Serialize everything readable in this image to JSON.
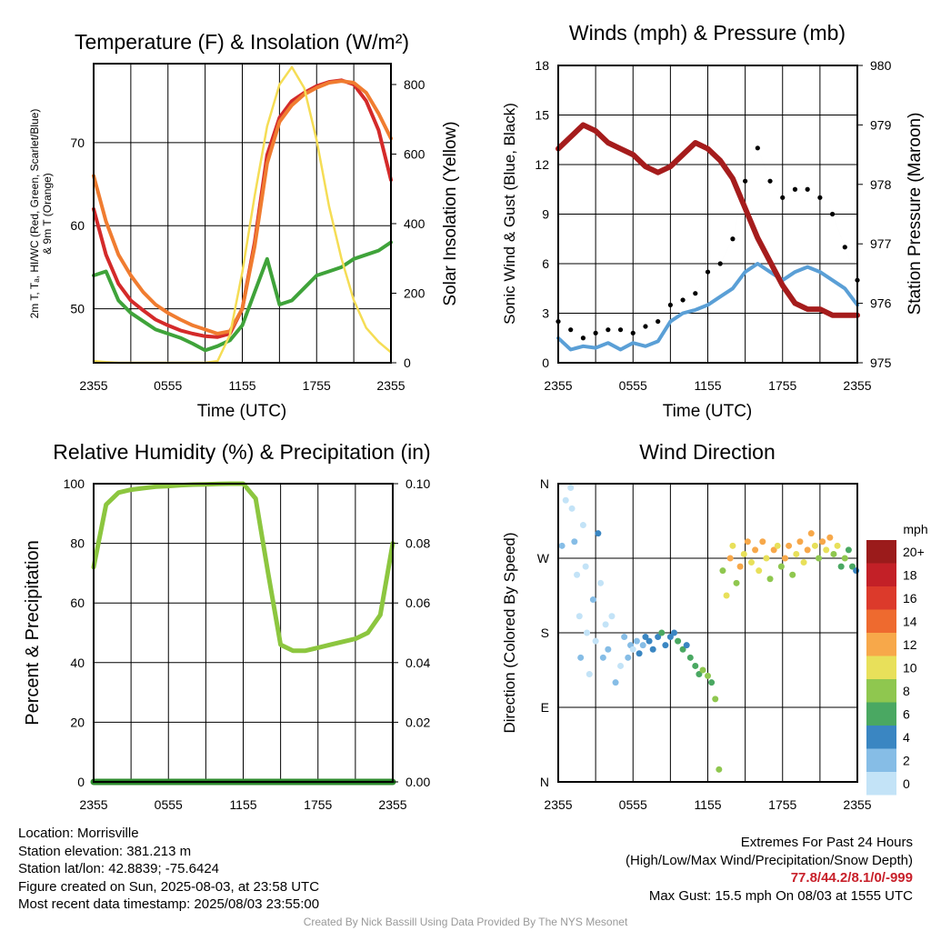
{
  "panels": {
    "temp": {
      "title": "Temperature (F) & Insolation (W/m²)",
      "xlabel": "Time (UTC)",
      "ylabel_lines": [
        "2m T, Tₐ, HI/WC (Red, Green, Scarlet/Blue)",
        "& 9m T (Orange)"
      ],
      "ylabel2": "Solar Insolation (Yellow)"
    },
    "wind": {
      "title": "Winds (mph) & Pressure (mb)",
      "xlabel": "Time (UTC)",
      "ylabel": "Sonic Wind & Gust (Blue, Black)",
      "ylabel2": "Station Pressure (Maroon)"
    },
    "rh": {
      "title": "Relative Humidity (%) & Precipitation (in)",
      "ylabel": "Percent & Precipitation"
    },
    "dir": {
      "title": "Wind Direction",
      "ylabel": "Direction (Colored By Speed)",
      "legend_title": "mph",
      "legend_labels": [
        "20+",
        "18",
        "16",
        "14",
        "12",
        "10",
        "8",
        "6",
        "4",
        "2",
        "0"
      ],
      "legend_colors": [
        "#9b1b1b",
        "#c32027",
        "#dc3a2b",
        "#ee6a2f",
        "#f7a84a",
        "#e8e05a",
        "#8fc74f",
        "#4aa862",
        "#3a86c2",
        "#86bde6",
        "#c3e3f7"
      ]
    }
  },
  "chart_data": [
    {
      "type": "line",
      "title": "Temperature (F) & Insolation (W/m²)",
      "xlabel": "Time (UTC)",
      "ylabel": "2m T, Td, HI/WC (Red, Green, Scarlet/Blue) & 9m T (Orange)",
      "y2label": "Solar Insolation (Yellow)",
      "xticks": [
        "2355",
        "0555",
        "1155",
        "1755",
        "2355"
      ],
      "x": [
        0,
        1,
        2,
        3,
        4,
        5,
        6,
        7,
        8,
        9,
        10,
        11,
        12,
        13,
        14,
        15,
        16,
        17,
        18,
        19,
        20,
        21,
        22,
        23,
        24
      ],
      "ylim": [
        43.5,
        79.5
      ],
      "y2lim": [
        0,
        860
      ],
      "yticks": [
        50,
        60,
        70
      ],
      "y2ticks": [
        0,
        200,
        400,
        600,
        800
      ],
      "grid": true,
      "series": [
        {
          "name": "2m T",
          "axis": "left",
          "color": "#d42a2a",
          "values": [
            62.0,
            56.5,
            53.0,
            51.0,
            49.8,
            48.7,
            48.0,
            47.4,
            47.0,
            46.7,
            46.6,
            47.0,
            50.0,
            58.0,
            68.5,
            73.0,
            75.0,
            76.0,
            76.8,
            77.3,
            77.5,
            77.0,
            75.0,
            71.5,
            65.5
          ]
        },
        {
          "name": "9m T",
          "axis": "left",
          "color": "#f07c30",
          "values": [
            66.0,
            60.5,
            56.5,
            54.0,
            52.0,
            50.5,
            49.5,
            48.7,
            48.0,
            47.5,
            47.0,
            47.3,
            50.0,
            57.5,
            67.5,
            72.5,
            74.5,
            75.8,
            76.6,
            77.2,
            77.4,
            77.2,
            76.0,
            73.5,
            70.5
          ]
        },
        {
          "name": "Td",
          "axis": "left",
          "color": "#3fa33a",
          "values": [
            54.0,
            54.5,
            51.0,
            49.5,
            48.5,
            47.5,
            47.0,
            46.5,
            45.8,
            45.0,
            45.5,
            46.2,
            48.0,
            52.0,
            56.0,
            50.5,
            51.0,
            52.5,
            54.0,
            54.5,
            55.0,
            56.0,
            56.5,
            57.0,
            58.0
          ]
        },
        {
          "name": "Solar Insolation",
          "axis": "right",
          "color": "#f5dd55",
          "values": [
            5,
            2,
            0,
            0,
            0,
            0,
            0,
            0,
            0,
            0,
            5,
            80,
            260,
            480,
            680,
            800,
            850,
            790,
            640,
            450,
            300,
            180,
            100,
            60,
            30
          ]
        }
      ]
    },
    {
      "type": "line",
      "title": "Winds (mph) & Pressure (mb)",
      "xlabel": "Time (UTC)",
      "ylabel": "Sonic Wind & Gust (Blue, Black)",
      "y2label": "Station Pressure (Maroon)",
      "xticks": [
        "2355",
        "0555",
        "1155",
        "1755",
        "2355"
      ],
      "x": [
        0,
        1,
        2,
        3,
        4,
        5,
        6,
        7,
        8,
        9,
        10,
        11,
        12,
        13,
        14,
        15,
        16,
        17,
        18,
        19,
        20,
        21,
        22,
        23,
        24
      ],
      "ylim": [
        0,
        18
      ],
      "yticks": [
        0,
        3,
        6,
        9,
        12,
        15,
        18
      ],
      "y2lim": [
        975,
        980
      ],
      "y2ticks": [
        975,
        976,
        977,
        978,
        979,
        980
      ],
      "grid": true,
      "series": [
        {
          "name": "Sonic Wind",
          "axis": "left",
          "color": "#5a9fd6",
          "values": [
            1.5,
            0.8,
            1.0,
            0.9,
            1.2,
            0.8,
            1.2,
            1.0,
            1.3,
            2.5,
            3.0,
            3.2,
            3.5,
            4.0,
            4.5,
            5.5,
            6.0,
            5.5,
            5.0,
            5.5,
            5.8,
            5.5,
            5.0,
            4.5,
            3.5
          ]
        },
        {
          "name": "Gust",
          "axis": "left",
          "color": "#000000",
          "values": [
            2.5,
            2.0,
            1.5,
            1.8,
            2.0,
            2.0,
            1.8,
            2.2,
            2.5,
            3.5,
            3.8,
            4.2,
            5.5,
            6.0,
            7.5,
            11.0,
            13.0,
            11.0,
            10.0,
            10.5,
            10.5,
            10.0,
            9.0,
            7.0,
            5.0
          ]
        },
        {
          "name": "Station Pressure",
          "axis": "right",
          "color": "#a51c1c",
          "values": [
            978.6,
            978.8,
            979.0,
            978.9,
            978.7,
            978.6,
            978.5,
            978.3,
            978.2,
            978.3,
            978.5,
            978.7,
            978.6,
            978.4,
            978.1,
            977.6,
            977.1,
            976.7,
            976.3,
            976.0,
            975.9,
            975.9,
            975.8,
            975.8,
            975.8
          ]
        }
      ],
      "max_gust": 15.5
    },
    {
      "type": "line",
      "title": "Relative Humidity (%) & Precipitation (in)",
      "ylabel": "Percent & Precipitation",
      "xticks": [
        "2355",
        "0555",
        "1155",
        "1755",
        "2355"
      ],
      "x": [
        0,
        1,
        2,
        3,
        4,
        5,
        6,
        7,
        8,
        9,
        10,
        11,
        12,
        13,
        14,
        15,
        16,
        17,
        18,
        19,
        20,
        21,
        22,
        23,
        24
      ],
      "ylim": [
        0,
        100
      ],
      "yticks": [
        0,
        20,
        40,
        60,
        80,
        100
      ],
      "y2lim": [
        0,
        0.1
      ],
      "y2ticks": [
        "0.00",
        "0.02",
        "0.04",
        "0.06",
        "0.08",
        "0.10"
      ],
      "grid": true,
      "series": [
        {
          "name": "Relative Humidity",
          "axis": "left",
          "color": "#8cc63f",
          "values": [
            72,
            93,
            97,
            98,
            98.5,
            99,
            99.2,
            99.5,
            99.7,
            99.8,
            99.9,
            100,
            100,
            95,
            70,
            46,
            44,
            44,
            45,
            46,
            47,
            48,
            50,
            56,
            80
          ]
        },
        {
          "name": "Precipitation",
          "axis": "right",
          "color": "#2e8b2e",
          "values": [
            0,
            0,
            0,
            0,
            0,
            0,
            0,
            0,
            0,
            0,
            0,
            0,
            0,
            0,
            0,
            0,
            0,
            0,
            0,
            0,
            0,
            0,
            0,
            0,
            0
          ]
        }
      ]
    },
    {
      "type": "scatter",
      "title": "Wind Direction",
      "ylabel": "Direction (Colored By Speed)",
      "xticks": [
        "2355",
        "0555",
        "1155",
        "1755",
        "2355"
      ],
      "yticks": [
        "N",
        "E",
        "S",
        "W",
        "N"
      ],
      "ylim": [
        0,
        360
      ],
      "grid": true,
      "points": [
        [
          0.3,
          285,
          1
        ],
        [
          0.6,
          340,
          0
        ],
        [
          1.0,
          355,
          0
        ],
        [
          1.1,
          330,
          0
        ],
        [
          1.3,
          290,
          1
        ],
        [
          1.5,
          250,
          0
        ],
        [
          1.7,
          200,
          0
        ],
        [
          1.8,
          150,
          1
        ],
        [
          2.0,
          310,
          0
        ],
        [
          2.2,
          260,
          0
        ],
        [
          2.3,
          180,
          0
        ],
        [
          2.5,
          130,
          0
        ],
        [
          2.8,
          220,
          1
        ],
        [
          3.0,
          170,
          0
        ],
        [
          3.2,
          300,
          2
        ],
        [
          3.4,
          240,
          0
        ],
        [
          3.6,
          150,
          1
        ],
        [
          3.8,
          190,
          0
        ],
        [
          4.0,
          160,
          1
        ],
        [
          4.3,
          200,
          0
        ],
        [
          4.6,
          120,
          1
        ],
        [
          5.0,
          140,
          0
        ],
        [
          5.3,
          175,
          1
        ],
        [
          5.6,
          150,
          1
        ],
        [
          5.8,
          165,
          1
        ],
        [
          6.0,
          160,
          0
        ],
        [
          6.3,
          170,
          1
        ],
        [
          6.5,
          155,
          2
        ],
        [
          6.8,
          165,
          1
        ],
        [
          7.0,
          175,
          2
        ],
        [
          7.3,
          170,
          2
        ],
        [
          7.6,
          160,
          2
        ],
        [
          8.0,
          175,
          2
        ],
        [
          8.3,
          180,
          3
        ],
        [
          8.6,
          165,
          2
        ],
        [
          9.0,
          175,
          2
        ],
        [
          9.3,
          180,
          2
        ],
        [
          9.6,
          170,
          3
        ],
        [
          10.0,
          160,
          3
        ],
        [
          10.3,
          165,
          2
        ],
        [
          10.6,
          150,
          3
        ],
        [
          11.0,
          140,
          3
        ],
        [
          11.3,
          130,
          3
        ],
        [
          11.6,
          135,
          4
        ],
        [
          12.0,
          128,
          4
        ],
        [
          12.3,
          120,
          3
        ],
        [
          12.6,
          100,
          4
        ],
        [
          12.9,
          15,
          4
        ],
        [
          13.2,
          255,
          4
        ],
        [
          13.5,
          225,
          5
        ],
        [
          13.8,
          270,
          6
        ],
        [
          14.0,
          285,
          5
        ],
        [
          14.3,
          240,
          4
        ],
        [
          14.6,
          260,
          6
        ],
        [
          14.9,
          275,
          5
        ],
        [
          15.2,
          290,
          6
        ],
        [
          15.5,
          265,
          5
        ],
        [
          15.8,
          280,
          6
        ],
        [
          16.1,
          255,
          5
        ],
        [
          16.4,
          290,
          6
        ],
        [
          16.7,
          270,
          5
        ],
        [
          17.0,
          245,
          4
        ],
        [
          17.3,
          280,
          6
        ],
        [
          17.6,
          285,
          5
        ],
        [
          17.9,
          260,
          4
        ],
        [
          18.2,
          270,
          6
        ],
        [
          18.5,
          285,
          6
        ],
        [
          18.8,
          250,
          4
        ],
        [
          19.1,
          275,
          5
        ],
        [
          19.4,
          290,
          6
        ],
        [
          19.7,
          265,
          5
        ],
        [
          20.0,
          280,
          6
        ],
        [
          20.3,
          300,
          6
        ],
        [
          20.6,
          285,
          5
        ],
        [
          20.9,
          270,
          4
        ],
        [
          21.2,
          290,
          6
        ],
        [
          21.5,
          280,
          5
        ],
        [
          21.8,
          295,
          6
        ],
        [
          22.1,
          275,
          4
        ],
        [
          22.4,
          285,
          5
        ],
        [
          22.7,
          260,
          3
        ],
        [
          23.0,
          270,
          4
        ],
        [
          23.3,
          280,
          3
        ],
        [
          23.6,
          260,
          3
        ],
        [
          23.9,
          255,
          2
        ]
      ]
    }
  ],
  "footer": {
    "location": "Location: Morrisville",
    "elevation": "Station elevation: 381.213 m",
    "latlon": "Station lat/lon: 42.8839; -75.6424",
    "created": "Figure created on Sun, 2025-08-03, at 23:58 UTC",
    "recent": "Most recent data timestamp: 2025/08/03 23:55:00",
    "extremes_title": "Extremes For Past 24 Hours",
    "extremes_sub": "(High/Low/Max Wind/Precipitation/Snow Depth)",
    "extremes_values": "77.8/44.2/8.1/0/-999",
    "max_gust": "Max Gust: 15.5 mph On 08/03 at 1555 UTC",
    "credit": "Created By Nick Bassill Using Data Provided By The NYS Mesonet"
  }
}
